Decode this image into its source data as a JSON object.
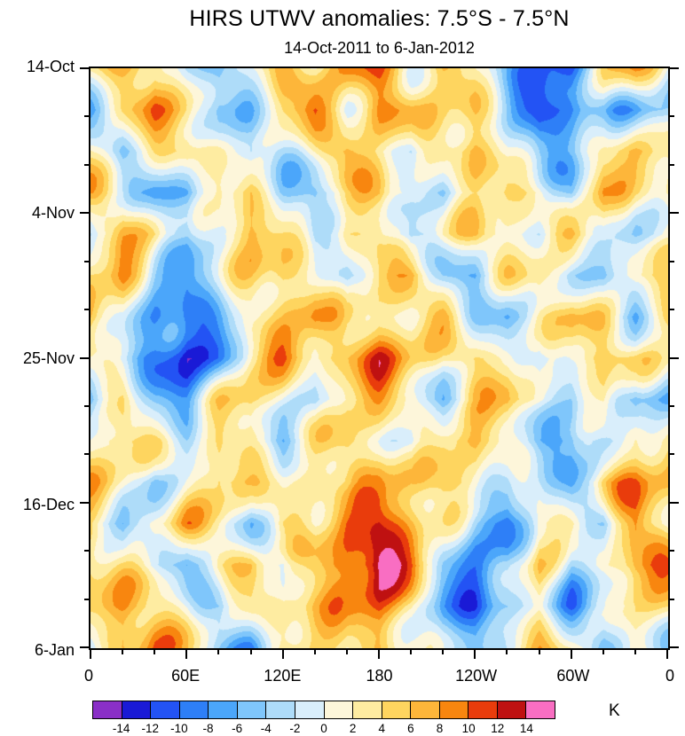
{
  "chart_data": {
    "type": "heatmap",
    "title": "HIRS UTWV anomalies: 7.5°S - 7.5°N",
    "subtitle": "14-Oct-2011 to 6-Jan-2012",
    "xlabel": "",
    "ylabel": "",
    "x_ticks": [
      "0",
      "60E",
      "120E",
      "180",
      "120W",
      "60W",
      "0"
    ],
    "x_tick_lons": [
      0,
      60,
      120,
      180,
      240,
      300,
      360
    ],
    "x_minor_step_deg": 20,
    "y_ticks": [
      "14-Oct",
      "4-Nov",
      "25-Nov",
      "16-Dec",
      "6-Jan"
    ],
    "y_tick_days": [
      0,
      21,
      42,
      63,
      84
    ],
    "y_minor_step_days": 7,
    "x_range_deg": [
      0,
      360
    ],
    "y_range_days": [
      0,
      84
    ],
    "grid": true,
    "legend_position": "bottom-colorbar",
    "colorbar": {
      "units": "K",
      "levels": [
        -14,
        -12,
        -10,
        -8,
        -6,
        -4,
        -2,
        0,
        2,
        4,
        6,
        8,
        10,
        12,
        14
      ],
      "colors": [
        "#8a2fc7",
        "#1a1ad6",
        "#2353f4",
        "#2e7ff7",
        "#4ba6fa",
        "#7fc6fb",
        "#aedcf9",
        "#d9eefb",
        "#fdf6da",
        "#feeca1",
        "#fed55f",
        "#fdb63a",
        "#f8860f",
        "#e93c0c",
        "#bf1111",
        "#f96ec2"
      ]
    },
    "grid_lon_step_deg": 20,
    "grid_time_step_days": 6,
    "values_note": "anomaly (K) estimated on a coarse grid; rows = time from 14-Oct-2011 (top) to 6-Jan-2012 (bottom) every 6 days; cols = longitude 0..360E every 20 deg",
    "values": [
      [
        1,
        6,
        8,
        -3,
        -7,
        2,
        7,
        3,
        7,
        8,
        2,
        6,
        1,
        -5,
        -11,
        -9,
        4,
        6,
        1
      ],
      [
        -4,
        3,
        9,
        4,
        -6,
        -3,
        4,
        8,
        2,
        9,
        6,
        3,
        5,
        -2,
        -12,
        -10,
        -4,
        -5,
        -4
      ],
      [
        3,
        -5,
        2,
        7,
        2,
        -6,
        -2,
        3,
        8,
        3,
        -3,
        6,
        8,
        -2,
        -6,
        -4,
        3,
        6,
        3
      ],
      [
        5,
        2,
        -6,
        -8,
        3,
        6,
        -4,
        -6,
        2,
        7,
        2,
        -5,
        3,
        7,
        2,
        -5,
        7,
        2,
        5
      ],
      [
        -2,
        6,
        3,
        -4,
        2,
        8,
        3,
        -3,
        6,
        2,
        -6,
        2,
        7,
        3,
        -2,
        5,
        3,
        -4,
        -2
      ],
      [
        4,
        8,
        -3,
        -7,
        -2,
        4,
        7,
        2,
        -4,
        5,
        7,
        -2,
        -7,
        2,
        6,
        -3,
        -6,
        3,
        4
      ],
      [
        7,
        2,
        -8,
        -11,
        -6,
        2,
        5,
        8,
        2,
        6,
        2,
        5,
        -3,
        -6,
        3,
        7,
        2,
        -5,
        7
      ],
      [
        2,
        -4,
        -9,
        -13,
        -8,
        3,
        8,
        4,
        7,
        10,
        6,
        2,
        6,
        3,
        -5,
        3,
        8,
        3,
        2
      ],
      [
        -5,
        3,
        -4,
        -7,
        2,
        7,
        2,
        -4,
        4,
        7,
        3,
        -5,
        2,
        7,
        2,
        -4,
        3,
        -6,
        -5
      ],
      [
        3,
        7,
        2,
        -3,
        5,
        2,
        -6,
        2,
        7,
        3,
        -3,
        4,
        8,
        2,
        -6,
        -8,
        -3,
        4,
        3
      ],
      [
        6,
        2,
        -5,
        2,
        7,
        3,
        2,
        6,
        2,
        8,
        5,
        7,
        3,
        -4,
        -2,
        -5,
        6,
        8,
        6
      ],
      [
        2,
        -6,
        3,
        6,
        2,
        -4,
        5,
        2,
        9,
        13,
        8,
        2,
        -6,
        -9,
        3,
        2,
        -4,
        9,
        2
      ],
      [
        8,
        3,
        -2,
        -6,
        3,
        6,
        -3,
        5,
        12,
        16,
        9,
        -4,
        -8,
        -4,
        6,
        -6,
        2,
        10,
        8
      ],
      [
        4,
        9,
        5,
        2,
        -5,
        2,
        4,
        8,
        6,
        10,
        4,
        -7,
        -11,
        -6,
        2,
        -8,
        -4,
        3,
        4
      ],
      [
        -2,
        7,
        10,
        4,
        -3,
        -6,
        2,
        5,
        2,
        6,
        2,
        -4,
        -6,
        2,
        7,
        3,
        -6,
        2,
        -2
      ]
    ]
  }
}
